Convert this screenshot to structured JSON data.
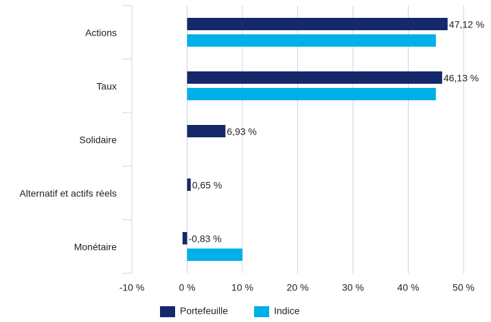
{
  "chart_data": {
    "type": "hbar",
    "categories": [
      "Actions",
      "Taux",
      "Solidaire",
      "Alternatif et actifs réels",
      "Monétaire"
    ],
    "series": [
      {
        "name": "Portefeuille",
        "color": "#14286a",
        "values": [
          47.12,
          46.13,
          6.93,
          0.65,
          -0.83
        ],
        "value_labels": [
          "47,12 %",
          "46,13 %",
          "6,93 %",
          "0,65 %",
          "-0,83 %"
        ]
      },
      {
        "name": "Indice",
        "color": "#00b0e8",
        "values": [
          45,
          45,
          null,
          null,
          10
        ]
      }
    ],
    "xlim": [
      -10,
      50
    ],
    "xticks": [
      {
        "value": -10,
        "label": "-10 %"
      },
      {
        "value": 0,
        "label": "0 %"
      },
      {
        "value": 10,
        "label": "10 %"
      },
      {
        "value": 20,
        "label": "20 %"
      },
      {
        "value": 30,
        "label": "30 %"
      },
      {
        "value": 40,
        "label": "40 %"
      },
      {
        "value": 50,
        "label": "50 %"
      }
    ],
    "grid": true
  }
}
